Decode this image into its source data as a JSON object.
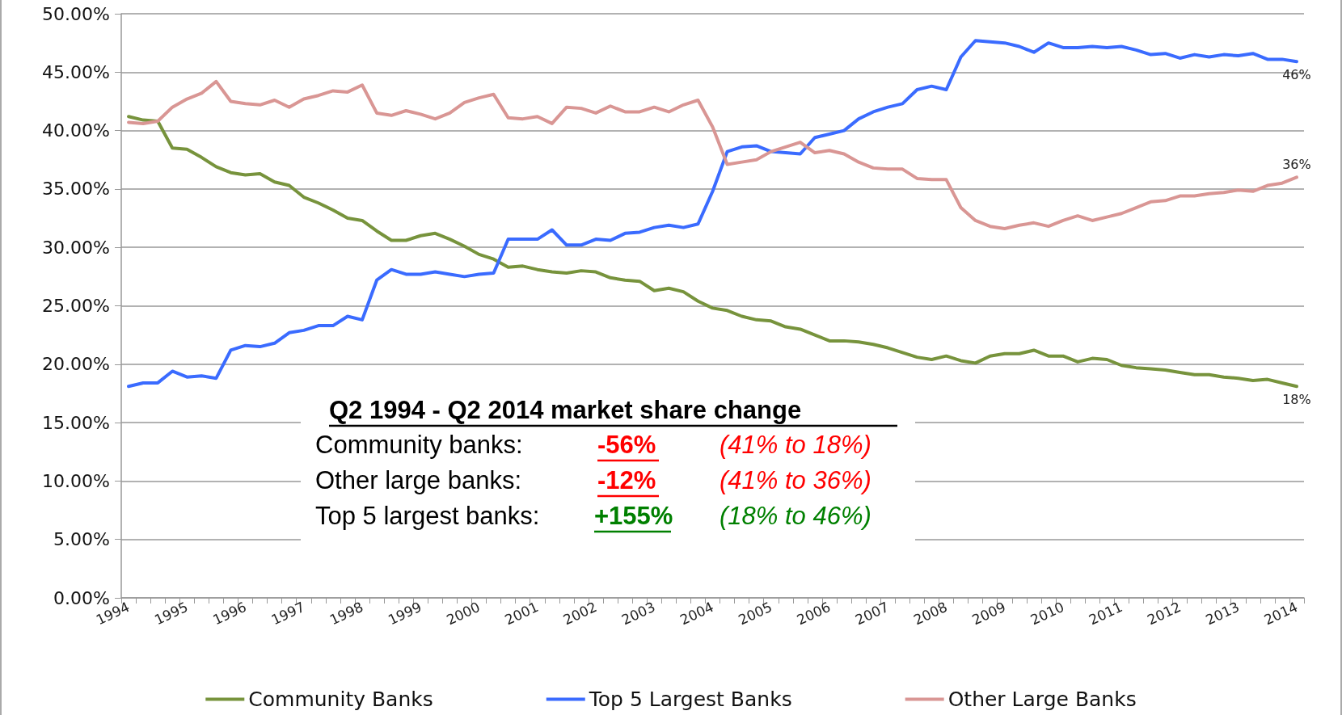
{
  "chart_data": {
    "type": "line",
    "categories": [
      "1994",
      null,
      null,
      null,
      "1995",
      null,
      null,
      null,
      "1996",
      null,
      null,
      null,
      "1997",
      null,
      null,
      null,
      "1998",
      null,
      null,
      null,
      "1999",
      null,
      null,
      null,
      "2000",
      null,
      null,
      null,
      "2001",
      null,
      null,
      null,
      "2002",
      null,
      null,
      null,
      "2003",
      null,
      null,
      null,
      "2004",
      null,
      null,
      null,
      "2005",
      null,
      null,
      null,
      "2006",
      null,
      null,
      null,
      "2007",
      null,
      null,
      null,
      "2008",
      null,
      null,
      null,
      "2009",
      null,
      null,
      null,
      "2010",
      null,
      null,
      null,
      "2011",
      null,
      null,
      null,
      "2012",
      null,
      null,
      null,
      "2013",
      null,
      null,
      null,
      "2014"
    ],
    "series": [
      {
        "name": "Community Banks",
        "color": "#77933c",
        "values": [
          41.2,
          40.9,
          40.8,
          38.5,
          38.4,
          37.7,
          36.9,
          36.4,
          36.2,
          36.3,
          35.6,
          35.3,
          34.3,
          33.8,
          33.2,
          32.5,
          32.3,
          31.4,
          30.6,
          30.6,
          31.0,
          31.2,
          30.7,
          30.1,
          29.4,
          29.0,
          28.3,
          28.4,
          28.1,
          27.9,
          27.8,
          28.0,
          27.9,
          27.4,
          27.2,
          27.1,
          26.3,
          26.5,
          26.2,
          25.4,
          24.8,
          24.6,
          24.1,
          23.8,
          23.7,
          23.2,
          23.0,
          22.5,
          22.0,
          22.0,
          21.9,
          21.7,
          21.4,
          21.0,
          20.6,
          20.4,
          20.7,
          20.3,
          20.1,
          20.7,
          20.9,
          20.9,
          21.2,
          20.7,
          20.7,
          20.2,
          20.5,
          20.4,
          19.9,
          19.7,
          19.6,
          19.5,
          19.3,
          19.1,
          19.1,
          18.9,
          18.8,
          18.6,
          18.7,
          18.4,
          18.1
        ],
        "value_labels": [
          null,
          null,
          null,
          null,
          null,
          null,
          null,
          null,
          null,
          null,
          null,
          null,
          null,
          null,
          null,
          null,
          null,
          null,
          null,
          null,
          null,
          null,
          null,
          null,
          null,
          null,
          null,
          null,
          null,
          null,
          null,
          null,
          null,
          null,
          null,
          null,
          null,
          null,
          null,
          null,
          null,
          null,
          null,
          null,
          null,
          null,
          null,
          null,
          null,
          null,
          null,
          null,
          null,
          null,
          null,
          null,
          null,
          null,
          null,
          null,
          null,
          null,
          null,
          null,
          null,
          null,
          null,
          null,
          null,
          null,
          null,
          null,
          null,
          null,
          null,
          null,
          null,
          null,
          null,
          null,
          "18%"
        ]
      },
      {
        "name": "Top 5 Largest Banks",
        "color": "#3a6bff",
        "values": [
          18.1,
          18.4,
          18.4,
          19.4,
          18.9,
          19.0,
          18.8,
          21.2,
          21.6,
          21.5,
          21.8,
          22.7,
          22.9,
          23.3,
          23.3,
          24.1,
          23.8,
          27.2,
          28.1,
          27.7,
          27.7,
          27.9,
          27.7,
          27.5,
          27.7,
          27.8,
          30.7,
          30.7,
          30.7,
          31.5,
          30.2,
          30.2,
          30.7,
          30.6,
          31.2,
          31.3,
          31.7,
          31.9,
          31.7,
          32.0,
          34.8,
          38.2,
          38.6,
          38.7,
          38.2,
          38.1,
          38.0,
          39.4,
          39.7,
          40.0,
          41.0,
          41.6,
          42.0,
          42.3,
          43.5,
          43.8,
          43.5,
          46.3,
          47.7,
          47.6,
          47.5,
          47.2,
          46.7,
          47.5,
          47.1,
          47.1,
          47.2,
          47.1,
          47.2,
          46.9,
          46.5,
          46.6,
          46.2,
          46.5,
          46.3,
          46.5,
          46.4,
          46.6,
          46.1,
          46.1,
          45.9
        ],
        "value_labels": [
          null,
          null,
          null,
          null,
          null,
          null,
          null,
          null,
          null,
          null,
          null,
          null,
          null,
          null,
          null,
          null,
          null,
          null,
          null,
          null,
          null,
          null,
          null,
          null,
          null,
          null,
          null,
          null,
          null,
          null,
          null,
          null,
          null,
          null,
          null,
          null,
          null,
          null,
          null,
          null,
          null,
          null,
          null,
          null,
          null,
          null,
          null,
          null,
          null,
          null,
          null,
          null,
          null,
          null,
          null,
          null,
          null,
          null,
          null,
          null,
          null,
          null,
          null,
          null,
          null,
          null,
          null,
          null,
          null,
          null,
          null,
          null,
          null,
          null,
          null,
          null,
          null,
          null,
          null,
          null,
          "46%"
        ]
      },
      {
        "name": "Other Large Banks",
        "color": "#d99694",
        "values": [
          40.7,
          40.6,
          40.8,
          42.0,
          42.7,
          43.2,
          44.2,
          42.5,
          42.3,
          42.2,
          42.6,
          42.0,
          42.7,
          43.0,
          43.4,
          43.3,
          43.9,
          41.5,
          41.3,
          41.7,
          41.4,
          41.0,
          41.5,
          42.4,
          42.8,
          43.1,
          41.1,
          41.0,
          41.2,
          40.6,
          42.0,
          41.9,
          41.5,
          42.1,
          41.6,
          41.6,
          42.0,
          41.6,
          42.2,
          42.6,
          40.3,
          37.1,
          37.3,
          37.5,
          38.2,
          38.6,
          39.0,
          38.1,
          38.3,
          38.0,
          37.3,
          36.8,
          36.7,
          36.7,
          35.9,
          35.8,
          35.8,
          33.4,
          32.3,
          31.8,
          31.6,
          31.9,
          32.1,
          31.8,
          32.3,
          32.7,
          32.3,
          32.6,
          32.9,
          33.4,
          33.9,
          34.0,
          34.4,
          34.4,
          34.6,
          34.7,
          34.9,
          34.8,
          35.3,
          35.5,
          36.0
        ],
        "value_labels": [
          null,
          null,
          null,
          null,
          null,
          null,
          null,
          null,
          null,
          null,
          null,
          null,
          null,
          null,
          null,
          null,
          null,
          null,
          null,
          null,
          null,
          null,
          null,
          null,
          null,
          null,
          null,
          null,
          null,
          null,
          null,
          null,
          null,
          null,
          null,
          null,
          null,
          null,
          null,
          null,
          null,
          null,
          null,
          null,
          null,
          null,
          null,
          null,
          null,
          null,
          null,
          null,
          null,
          null,
          null,
          null,
          null,
          null,
          null,
          null,
          null,
          null,
          null,
          null,
          null,
          null,
          null,
          null,
          null,
          null,
          null,
          null,
          null,
          null,
          null,
          null,
          null,
          null,
          null,
          null,
          "36%"
        ]
      }
    ],
    "ylim": [
      0,
      50
    ],
    "yticks": [
      {
        "value": 0,
        "label": "0.00%"
      },
      {
        "value": 5,
        "label": "5.00%"
      },
      {
        "value": 10,
        "label": "10.00%"
      },
      {
        "value": 15,
        "label": "15.00%"
      },
      {
        "value": 20,
        "label": "20.00%"
      },
      {
        "value": 25,
        "label": "25.00%"
      },
      {
        "value": 30,
        "label": "30.00%"
      },
      {
        "value": 35,
        "label": "35.00%"
      },
      {
        "value": 40,
        "label": "40.00%"
      },
      {
        "value": 45,
        "label": "45.00%"
      },
      {
        "value": 50,
        "label": "50.00%"
      }
    ],
    "grid": "y",
    "legend": "bottom",
    "marker": "none",
    "line_style": "solid",
    "annotations": [
      "Q2 1994 - Q2 2014 market share change",
      "Community banks:",
      "-56%",
      "(41% to 18%)",
      "Other large banks:",
      "-12%",
      "(41% to 36%)",
      "Top 5 largest banks:",
      "+155%",
      "(18% to 46%)"
    ]
  }
}
